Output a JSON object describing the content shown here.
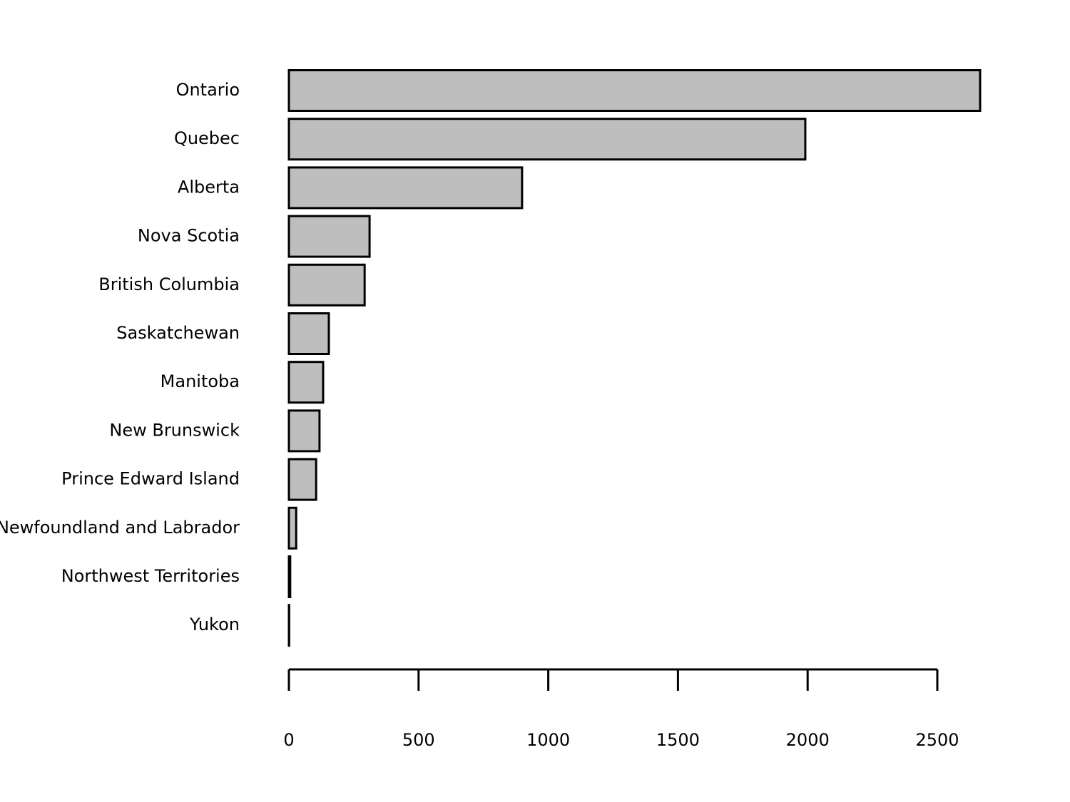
{
  "chart_data": {
    "type": "bar",
    "orientation": "horizontal",
    "categories": [
      "Ontario",
      "Quebec",
      "Alberta",
      "Nova Scotia",
      "British Columbia",
      "Saskatchewan",
      "Manitoba",
      "New Brunswick",
      "Prince Edward Island",
      "Newfoundland and Labrador",
      "Northwest Territories",
      "Yukon"
    ],
    "values": [
      2665,
      1991,
      899,
      311,
      292,
      154,
      132,
      118,
      105,
      28,
      5,
      1
    ],
    "color": "#bebebe",
    "xlim": [
      0,
      2665
    ],
    "xticks": [
      0,
      500,
      1000,
      1500,
      2000,
      2500
    ],
    "grid": false
  }
}
